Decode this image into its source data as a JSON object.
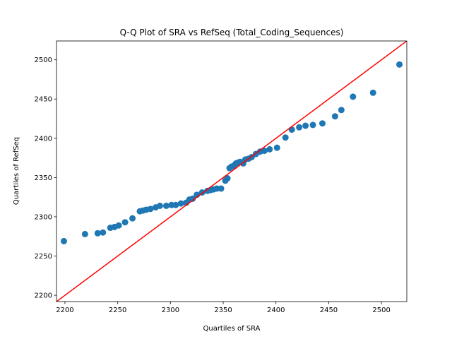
{
  "chart_data": {
    "type": "scatter",
    "title": "Q-Q Plot of SRA vs RefSeq (Total_Coding_Sequences)",
    "xlabel": "Quartiles of SRA",
    "ylabel": "Quartiles of RefSeq",
    "xlim": [
      2192,
      2524
    ],
    "ylim": [
      2192,
      2524
    ],
    "xticks": [
      2200,
      2250,
      2300,
      2350,
      2400,
      2450,
      2500
    ],
    "yticks": [
      2200,
      2250,
      2300,
      2350,
      2400,
      2450,
      2500
    ],
    "grid": false,
    "legend": "none",
    "colors": {
      "points": "#1f77b4",
      "reference_line": "#ff0000"
    },
    "reference_line": {
      "x": [
        2192,
        2524
      ],
      "y": [
        2192,
        2524
      ]
    },
    "series": [
      {
        "x": [
          2199,
          2219,
          2231,
          2236,
          2243,
          2247,
          2251,
          2257,
          2264,
          2271,
          2274,
          2277,
          2281,
          2286,
          2290,
          2296,
          2301,
          2305,
          2310,
          2315,
          2318,
          2321,
          2325,
          2330,
          2335,
          2338,
          2341,
          2344,
          2348,
          2352,
          2354,
          2356,
          2358,
          2360,
          2362,
          2364,
          2366,
          2369,
          2371,
          2374,
          2377,
          2381,
          2385,
          2389,
          2394,
          2401,
          2409,
          2415,
          2422,
          2428,
          2435,
          2444,
          2456,
          2462,
          2473,
          2492,
          2517
        ],
        "y": [
          2269,
          2278,
          2279,
          2280,
          2286,
          2287,
          2289,
          2293,
          2298,
          2307,
          2308,
          2309,
          2310,
          2312,
          2314,
          2314,
          2315,
          2315,
          2317,
          2318,
          2322,
          2323,
          2328,
          2331,
          2333,
          2334,
          2335,
          2336,
          2336,
          2346,
          2349,
          2362,
          2364,
          2365,
          2368,
          2369,
          2370,
          2368,
          2373,
          2374,
          2376,
          2380,
          2383,
          2384,
          2386,
          2388,
          2401,
          2411,
          2414,
          2416,
          2417,
          2419,
          2428,
          2436,
          2453,
          2458,
          2494
        ]
      }
    ]
  }
}
